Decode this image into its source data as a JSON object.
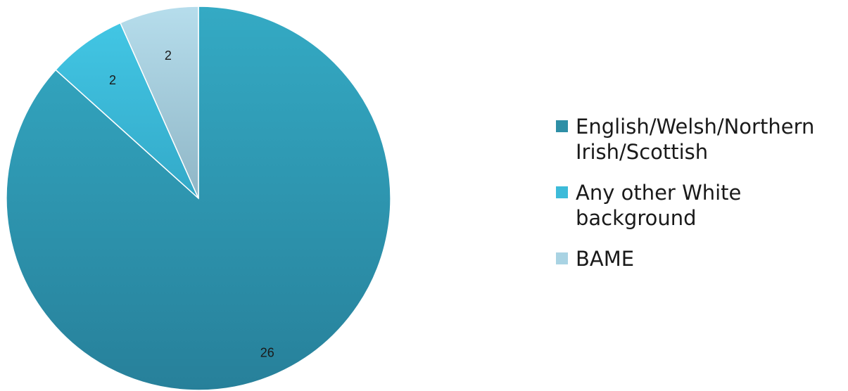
{
  "chart_data": {
    "type": "pie",
    "categories": [
      "English/Welsh/Northern Irish/Scottish",
      "Any other White background",
      "BAME"
    ],
    "values": [
      26,
      2,
      2
    ],
    "data_labels": [
      "26",
      "2",
      "2"
    ],
    "colors": [
      "#2E8FA6",
      "#3DBBD9",
      "#A9D3E3"
    ],
    "start_angle_deg": 0,
    "direction": "clockwise",
    "legend_position": "right",
    "title": ""
  }
}
